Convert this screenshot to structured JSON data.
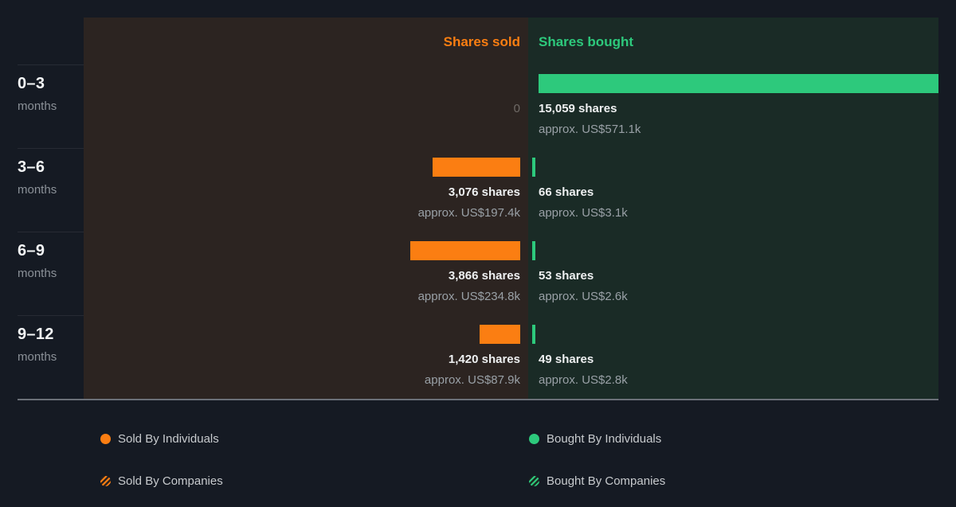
{
  "header": {
    "sold_label": "Shares sold",
    "bought_label": "Shares bought"
  },
  "rows": [
    {
      "range": "0–3",
      "unit": "months",
      "sold": {
        "value": 0,
        "shares_label": "0",
        "approx_label": ""
      },
      "bought": {
        "value": 15059,
        "shares_label": "15,059 shares",
        "approx_label": "approx. US$571.1k"
      }
    },
    {
      "range": "3–6",
      "unit": "months",
      "sold": {
        "value": 3076,
        "shares_label": "3,076 shares",
        "approx_label": "approx. US$197.4k"
      },
      "bought": {
        "value": 66,
        "shares_label": "66 shares",
        "approx_label": "approx. US$3.1k"
      }
    },
    {
      "range": "6–9",
      "unit": "months",
      "sold": {
        "value": 3866,
        "shares_label": "3,866 shares",
        "approx_label": "approx. US$234.8k"
      },
      "bought": {
        "value": 53,
        "shares_label": "53 shares",
        "approx_label": "approx. US$2.6k"
      }
    },
    {
      "range": "9–12",
      "unit": "months",
      "sold": {
        "value": 1420,
        "shares_label": "1,420 shares",
        "approx_label": "approx. US$87.9k"
      },
      "bought": {
        "value": 49,
        "shares_label": "49 shares",
        "approx_label": "approx. US$2.8k"
      }
    }
  ],
  "legend": [
    {
      "label": "Sold By Individuals",
      "icon": "solid-orange-dot"
    },
    {
      "label": "Sold By Companies",
      "icon": "hatched-orange-dot"
    },
    {
      "label": "Bought By Individuals",
      "icon": "solid-green-dot"
    },
    {
      "label": "Bought By Companies",
      "icon": "hatched-green-dot"
    }
  ],
  "colors": {
    "page_bg": "#151a23",
    "sold_panel_bg": "#2c2421",
    "bought_panel_bg": "#1a2b26",
    "sold_accent": "#fb7e12",
    "bought_accent": "#2dc97c"
  },
  "chart_data": {
    "type": "bar",
    "orientation": "horizontal",
    "categories": [
      "0–3 months",
      "3–6 months",
      "6–9 months",
      "9–12 months"
    ],
    "series": [
      {
        "name": "Shares sold",
        "color": "#fb7e12",
        "values": [
          0,
          3076,
          3866,
          1420
        ],
        "approx_usd": [
          "",
          "US$197.4k",
          "US$234.8k",
          "US$87.9k"
        ]
      },
      {
        "name": "Shares bought",
        "color": "#2dc97c",
        "values": [
          15059,
          66,
          53,
          49
        ],
        "approx_usd": [
          "US$571.1k",
          "US$3.1k",
          "US$2.6k",
          "US$2.8k"
        ]
      }
    ],
    "value_unit": "shares",
    "legend_entries": [
      "Sold By Individuals",
      "Sold By Companies",
      "Bought By Individuals",
      "Bought By Companies"
    ],
    "legend_position": "bottom",
    "grid": false
  }
}
